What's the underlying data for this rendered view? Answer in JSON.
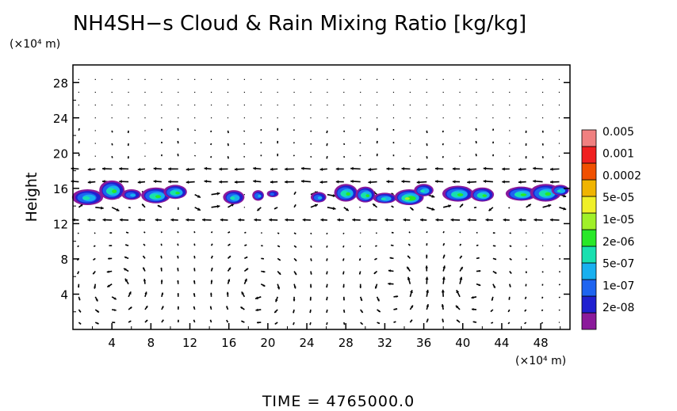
{
  "chart_data": {
    "type": "heatmap",
    "title": "NH4SH−s Cloud & Rain Mixing Ratio [kg/kg]",
    "ylabel": "Height",
    "y_unit": "(×10⁴ m)",
    "x_unit": "(×10⁴ m)",
    "xlim": [
      0,
      51
    ],
    "ylim": [
      0,
      30
    ],
    "x_ticks": [
      4,
      8,
      12,
      16,
      20,
      24,
      28,
      32,
      36,
      40,
      44,
      48
    ],
    "y_ticks": [
      4,
      8,
      12,
      16,
      20,
      24,
      28
    ],
    "colorbar": {
      "labels": [
        "2e-08",
        "1e-07",
        "5e-07",
        "2e-06",
        "1e-05",
        "5e-05",
        "0.0002",
        "0.001",
        "0.005"
      ],
      "colors": [
        "#8b1a9b",
        "#2020d0",
        "#1e64f0",
        "#18b0f0",
        "#18e0b0",
        "#28e828",
        "#a0f028",
        "#f0f028",
        "#f0b400",
        "#f05000",
        "#f02020",
        "#f08080"
      ]
    },
    "cloud_blobs": [
      {
        "x": 1.5,
        "y": 15.0,
        "rx": 1.6,
        "ry": 0.9,
        "level": 4
      },
      {
        "x": 4.0,
        "y": 15.8,
        "rx": 1.3,
        "ry": 1.1,
        "level": 5
      },
      {
        "x": 6.0,
        "y": 15.3,
        "rx": 1.0,
        "ry": 0.6,
        "level": 3
      },
      {
        "x": 8.5,
        "y": 15.2,
        "rx": 1.5,
        "ry": 0.9,
        "level": 5
      },
      {
        "x": 10.5,
        "y": 15.6,
        "rx": 1.2,
        "ry": 0.8,
        "level": 5
      },
      {
        "x": 16.5,
        "y": 15.0,
        "rx": 1.1,
        "ry": 0.8,
        "level": 4
      },
      {
        "x": 19.0,
        "y": 15.2,
        "rx": 0.6,
        "ry": 0.6,
        "level": 3
      },
      {
        "x": 20.5,
        "y": 15.4,
        "rx": 0.6,
        "ry": 0.4,
        "level": 2
      },
      {
        "x": 25.2,
        "y": 15.0,
        "rx": 0.8,
        "ry": 0.6,
        "level": 3
      },
      {
        "x": 28.0,
        "y": 15.5,
        "rx": 1.2,
        "ry": 1.0,
        "level": 5
      },
      {
        "x": 30.0,
        "y": 15.3,
        "rx": 1.0,
        "ry": 0.9,
        "level": 5
      },
      {
        "x": 32.0,
        "y": 14.9,
        "rx": 1.2,
        "ry": 0.6,
        "level": 4
      },
      {
        "x": 34.5,
        "y": 15.0,
        "rx": 1.5,
        "ry": 0.9,
        "level": 6
      },
      {
        "x": 36.0,
        "y": 15.8,
        "rx": 1.0,
        "ry": 0.7,
        "level": 4
      },
      {
        "x": 39.5,
        "y": 15.4,
        "rx": 1.6,
        "ry": 0.9,
        "level": 5
      },
      {
        "x": 42.0,
        "y": 15.3,
        "rx": 1.2,
        "ry": 0.8,
        "level": 5
      },
      {
        "x": 46.0,
        "y": 15.4,
        "rx": 1.6,
        "ry": 0.8,
        "level": 5
      },
      {
        "x": 48.5,
        "y": 15.5,
        "rx": 1.6,
        "ry": 1.0,
        "level": 5
      },
      {
        "x": 50.0,
        "y": 15.8,
        "rx": 0.9,
        "ry": 0.6,
        "level": 4
      }
    ],
    "wind_vectors": "u/w velocity arrows over the domain; rolling circulation cells below 10, shear layers near 17 and 12"
  },
  "footer": {
    "time_label": "TIME",
    "time_sep": "=",
    "time_value": "4765000.0"
  }
}
